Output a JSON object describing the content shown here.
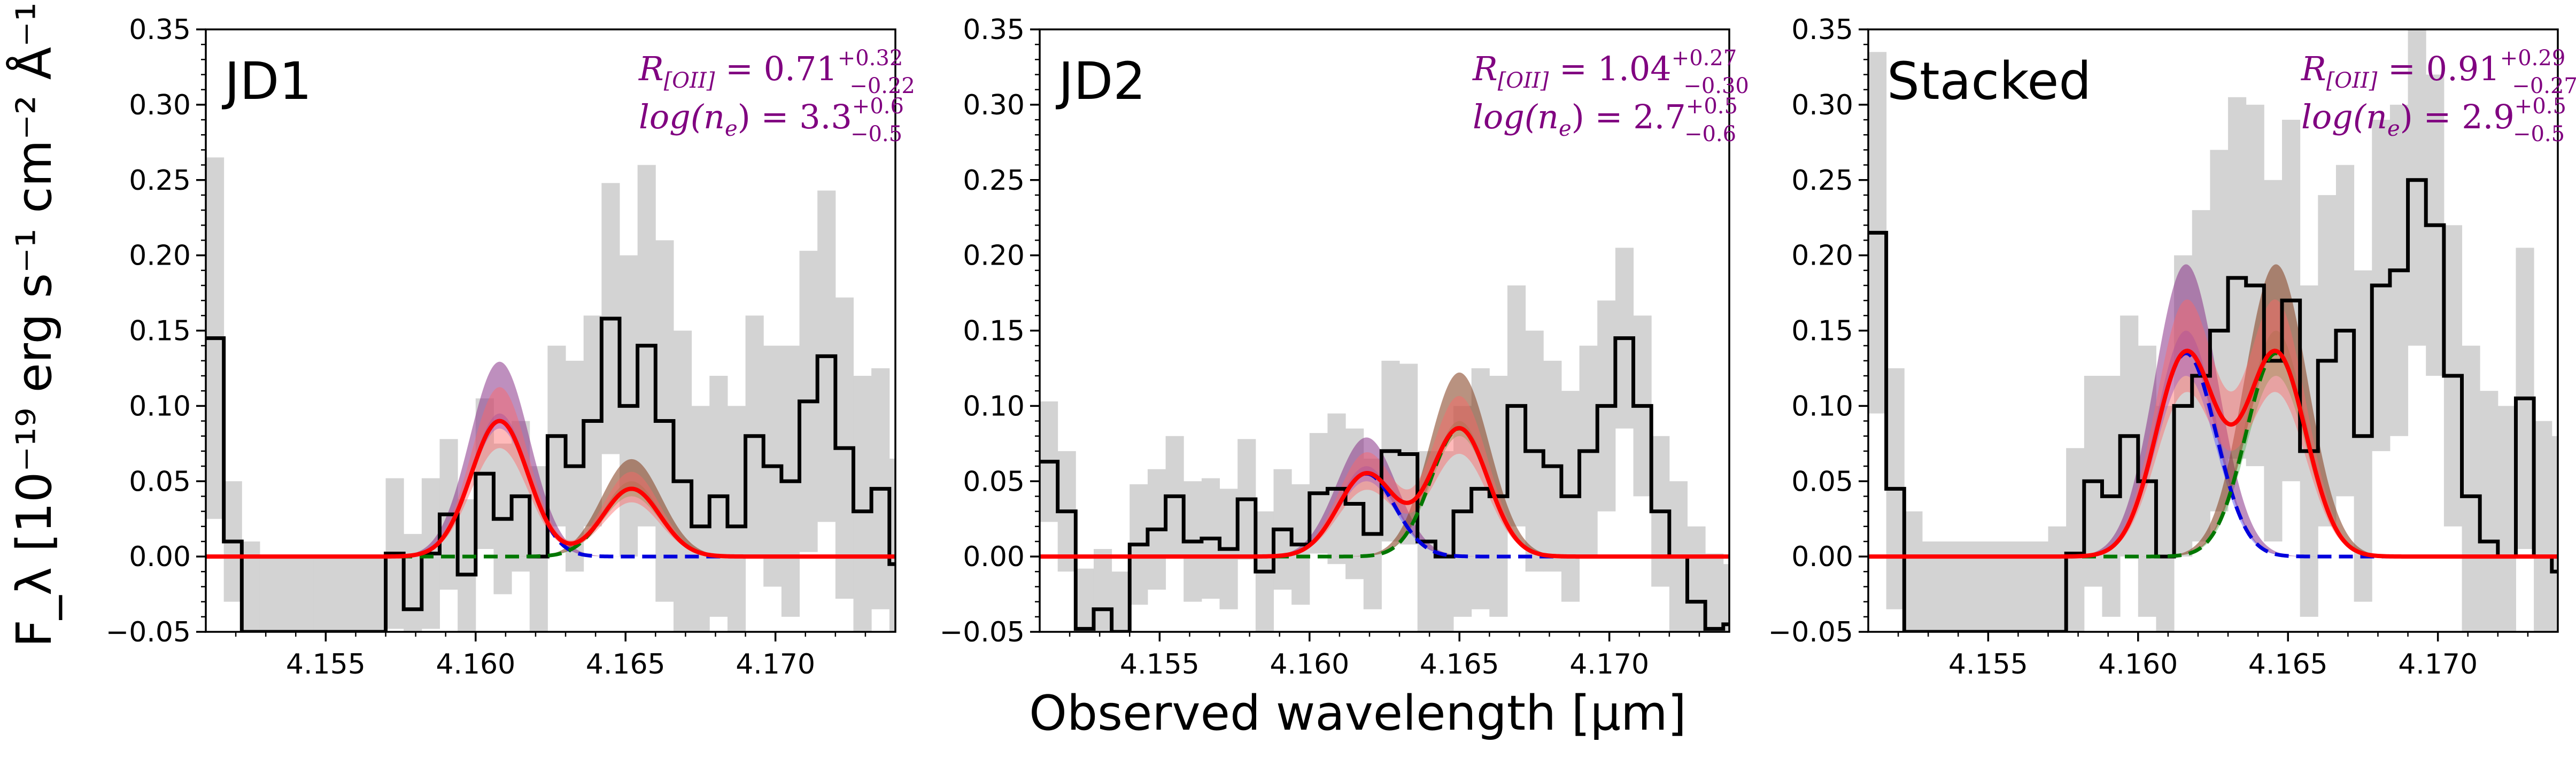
{
  "figure": {
    "ylabel": "F_λ [10⁻¹⁹ erg s⁻¹ cm⁻² Å⁻¹]",
    "xlabel": "Observed wavelength [μm]"
  },
  "colors": {
    "observed": "#000000",
    "error_band": "#d3d3d3",
    "total_model": "#ff0000",
    "component_blue": "#0000dd",
    "component_green": "#007700",
    "blue_band": "#6666ff",
    "green_band": "#66bb66",
    "red_band": "#ff6666",
    "purple_overlap": "#883388",
    "brown_overlap": "#8b4a2b",
    "annotation": "#800080"
  },
  "chart_data": [
    {
      "type": "line",
      "panel_label": "JD1",
      "annotations": [
        "R[OII] = 0.71 (+0.32 / −0.22)",
        "log(ne) = 3.3 (+0.6 / −0.5)"
      ],
      "ann_r": {
        "prefix": "R",
        "sub": "[OII]",
        "value": " = 0.71",
        "plus": "+0.32",
        "minus": "−0.22"
      },
      "ann_n": {
        "prefix": "log(n",
        "sub": "e",
        "value": ") = 3.3",
        "plus": "+0.6",
        "minus": "−0.5"
      },
      "xlim": [
        4.151,
        4.174
      ],
      "ylim": [
        -0.05,
        0.35
      ],
      "xticks": [
        "4.155",
        "4.160",
        "4.165",
        "4.170"
      ],
      "yticks": [
        "−0.05",
        "0.00",
        "0.05",
        "0.10",
        "0.15",
        "0.20",
        "0.25",
        "0.30",
        "0.35"
      ],
      "step_x0": 4.151,
      "step_dx": 0.0006,
      "observed_flux": [
        0.145,
        0.01,
        -0.05,
        -0.05,
        -0.05,
        -0.05,
        -0.05,
        -0.05,
        -0.05,
        -0.05,
        0.002,
        -0.035,
        0.002,
        0.028,
        -0.012,
        0.055,
        0.025,
        0.04,
        0.0,
        0.08,
        0.06,
        0.09,
        0.158,
        0.1,
        0.14,
        0.09,
        0.05,
        0.02,
        0.04,
        0.02,
        0.08,
        0.06,
        0.05,
        0.103,
        0.133,
        0.072,
        0.03,
        0.045,
        -0.005,
        0.005,
        -0.035,
        0.082,
        -0.01,
        -0.005,
        0.0,
        -0.015,
        -0.018,
        -0.048,
        -0.018,
        -0.048,
        -0.05
      ],
      "flux_err": [
        0.12,
        0.04,
        0.06,
        0.05,
        0.05,
        0.05,
        0.05,
        0.05,
        0.05,
        0.05,
        0.05,
        0.05,
        0.05,
        0.05,
        0.05,
        0.05,
        0.05,
        0.05,
        0.06,
        0.06,
        0.07,
        0.07,
        0.09,
        0.1,
        0.12,
        0.12,
        0.1,
        0.08,
        0.08,
        0.08,
        0.08,
        0.08,
        0.09,
        0.1,
        0.11,
        0.1,
        0.09,
        0.08,
        0.07,
        0.07,
        0.06,
        0.06,
        0.06,
        0.06,
        0.06,
        0.06,
        0.06,
        0.06,
        0.05,
        0.05,
        0.05
      ],
      "components": [
        {
          "center": 4.1608,
          "amp": 0.09,
          "sigma": 0.00095,
          "band": [
            0.085,
            0.095
          ],
          "color": "blue"
        },
        {
          "center": 4.1652,
          "amp": 0.045,
          "sigma": 0.00095,
          "band": [
            0.04,
            0.05
          ],
          "color": "green"
        }
      ],
      "total_band_scale": [
        0.8,
        1.25
      ]
    },
    {
      "type": "line",
      "panel_label": "JD2",
      "annotations": [
        "R[OII] = 1.04 (+0.27 / −0.30)",
        "log(ne) = 2.7 (+0.5 / −0.6)"
      ],
      "ann_r": {
        "prefix": "R",
        "sub": "[OII]",
        "value": " = 1.04",
        "plus": "+0.27",
        "minus": "−0.30"
      },
      "ann_n": {
        "prefix": "log(n",
        "sub": "e",
        "value": ") = 2.7",
        "plus": "+0.5",
        "minus": "−0.6"
      },
      "xlim": [
        4.151,
        4.174
      ],
      "ylim": [
        -0.05,
        0.35
      ],
      "xticks": [
        "4.155",
        "4.160",
        "4.165",
        "4.170"
      ],
      "yticks": [
        "−0.05",
        "0.00",
        "0.05",
        "0.10",
        "0.15",
        "0.20",
        "0.25",
        "0.30",
        "0.35"
      ],
      "step_x0": 4.151,
      "step_dx": 0.0006,
      "observed_flux": [
        0.063,
        0.03,
        -0.048,
        -0.035,
        -0.05,
        0.008,
        0.018,
        0.04,
        0.01,
        0.012,
        0.005,
        0.038,
        -0.01,
        0.018,
        0.008,
        0.042,
        0.045,
        0.035,
        0.015,
        0.07,
        0.068,
        0.01,
        0.0,
        0.03,
        0.045,
        0.04,
        0.1,
        0.07,
        0.06,
        0.04,
        0.07,
        0.1,
        0.145,
        0.1,
        0.03,
        0.0,
        -0.03,
        -0.048,
        -0.045,
        -0.05,
        0.02,
        0.0,
        0.018,
        -0.01,
        0.018,
        0.015,
        0.012,
        0.018,
        0.01,
        0.022,
        0.02
      ],
      "flux_err": [
        0.04,
        0.04,
        0.04,
        0.04,
        0.04,
        0.04,
        0.04,
        0.04,
        0.04,
        0.04,
        0.04,
        0.04,
        0.04,
        0.04,
        0.04,
        0.04,
        0.05,
        0.05,
        0.05,
        0.06,
        0.06,
        0.06,
        0.07,
        0.07,
        0.08,
        0.08,
        0.08,
        0.08,
        0.07,
        0.07,
        0.07,
        0.07,
        0.06,
        0.06,
        0.05,
        0.05,
        0.05,
        0.05,
        0.04,
        0.04,
        0.04,
        0.04,
        0.04,
        0.04,
        0.04,
        0.04,
        0.04,
        0.04,
        0.04,
        0.04,
        0.04
      ],
      "components": [
        {
          "center": 4.1619,
          "amp": 0.055,
          "sigma": 0.00095,
          "band": [
            0.05,
            0.06
          ],
          "color": "blue"
        },
        {
          "center": 4.165,
          "amp": 0.085,
          "sigma": 0.00095,
          "band": [
            0.08,
            0.09
          ],
          "color": "green"
        }
      ],
      "total_band_scale": [
        0.8,
        1.25
      ]
    },
    {
      "type": "line",
      "panel_label": "Stacked",
      "annotations": [
        "R[OII] = 0.91 (+0.29 / −0.27)",
        "log(ne) = 2.9 (+0.5 / −0.5)"
      ],
      "ann_r": {
        "prefix": "R",
        "sub": "[OII]",
        "value": " = 0.91",
        "plus": "+0.29",
        "minus": "−0.27"
      },
      "ann_n": {
        "prefix": "log(n",
        "sub": "e",
        "value": ") = 2.9",
        "plus": "+0.5",
        "minus": "−0.5"
      },
      "xlim": [
        4.151,
        4.174
      ],
      "ylim": [
        -0.05,
        0.35
      ],
      "xticks": [
        "4.155",
        "4.160",
        "4.165",
        "4.170"
      ],
      "yticks": [
        "−0.05",
        "0.00",
        "0.05",
        "0.10",
        "0.15",
        "0.20",
        "0.25",
        "0.30",
        "0.35"
      ],
      "step_x0": 4.151,
      "step_dx": 0.0006,
      "observed_flux": [
        0.215,
        0.045,
        -0.05,
        -0.05,
        -0.05,
        -0.05,
        -0.05,
        -0.05,
        -0.05,
        -0.05,
        -0.05,
        0.002,
        0.05,
        0.04,
        0.08,
        0.05,
        0.0,
        0.1,
        0.12,
        0.15,
        0.185,
        0.18,
        0.13,
        0.17,
        0.07,
        0.13,
        0.15,
        0.08,
        0.18,
        0.19,
        0.25,
        0.22,
        0.12,
        0.04,
        0.01,
        0.0,
        0.105,
        0.0,
        -0.01,
        -0.05,
        -0.03,
        -0.048,
        -0.04,
        -0.02,
        -0.048,
        -0.05,
        -0.05,
        -0.05,
        -0.05,
        -0.05,
        -0.05
      ],
      "flux_err": [
        0.12,
        0.08,
        0.08,
        0.06,
        0.06,
        0.06,
        0.06,
        0.06,
        0.06,
        0.06,
        0.07,
        0.07,
        0.07,
        0.08,
        0.08,
        0.09,
        0.1,
        0.1,
        0.11,
        0.12,
        0.12,
        0.12,
        0.12,
        0.12,
        0.11,
        0.11,
        0.11,
        0.11,
        0.11,
        0.11,
        0.11,
        0.1,
        0.1,
        0.1,
        0.1,
        0.1,
        0.1,
        0.09,
        0.09,
        0.09,
        0.09,
        0.09,
        0.09,
        0.09,
        0.09,
        0.08,
        0.08,
        0.08,
        0.08,
        0.08,
        0.08
      ],
      "components": [
        {
          "center": 4.1616,
          "amp": 0.135,
          "sigma": 0.001,
          "band": [
            0.12,
            0.15
          ],
          "color": "blue"
        },
        {
          "center": 4.1646,
          "amp": 0.135,
          "sigma": 0.001,
          "band": [
            0.12,
            0.15
          ],
          "color": "green"
        }
      ],
      "total_band_scale": [
        0.8,
        1.25
      ]
    }
  ]
}
